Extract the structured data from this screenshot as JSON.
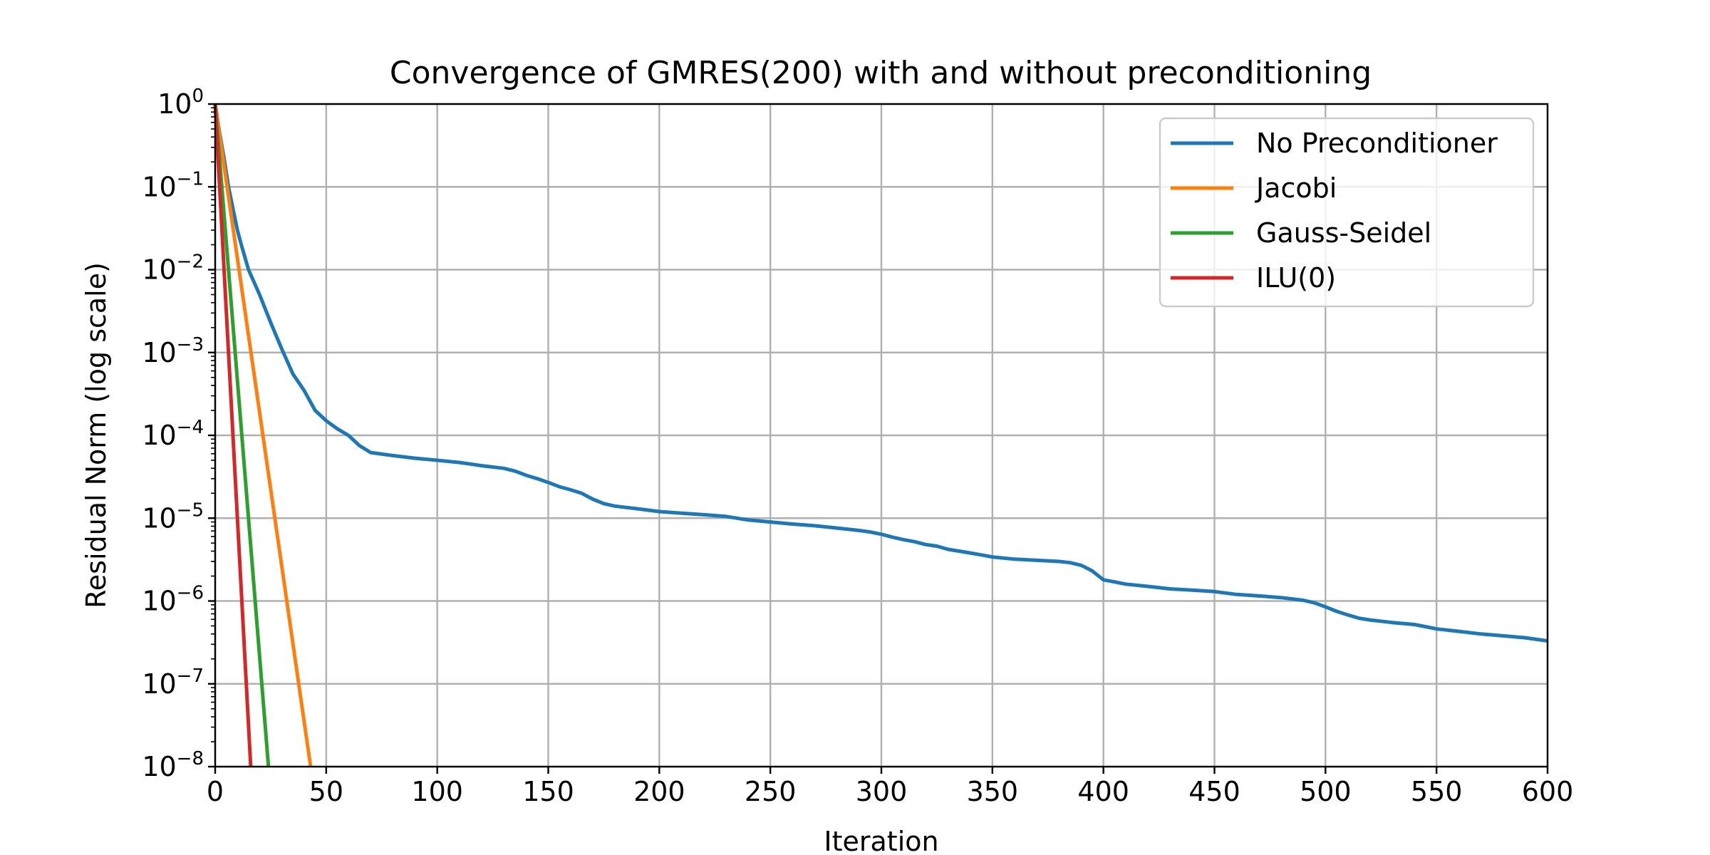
{
  "chart_data": {
    "type": "line",
    "title": "Convergence of GMRES(200) with and without preconditioning",
    "xlabel": "Iteration",
    "ylabel": "Residual Norm (log scale)",
    "xlim": [
      0,
      600
    ],
    "ylim": [
      1e-08,
      1
    ],
    "yscale": "log",
    "grid": true,
    "legend_position": "top-right",
    "x_ticks": [
      0,
      50,
      100,
      150,
      200,
      250,
      300,
      350,
      400,
      450,
      500,
      550,
      600
    ],
    "y_ticks": [
      {
        "value": 1,
        "base": "10",
        "exp": "0"
      },
      {
        "value": 0.1,
        "base": "10",
        "exp": "−1"
      },
      {
        "value": 0.01,
        "base": "10",
        "exp": "−2"
      },
      {
        "value": 0.001,
        "base": "10",
        "exp": "−3"
      },
      {
        "value": 0.0001,
        "base": "10",
        "exp": "−4"
      },
      {
        "value": 1e-05,
        "base": "10",
        "exp": "−5"
      },
      {
        "value": 1e-06,
        "base": "10",
        "exp": "−6"
      },
      {
        "value": 1e-07,
        "base": "10",
        "exp": "−7"
      },
      {
        "value": 1e-08,
        "base": "10",
        "exp": "−8"
      }
    ],
    "series": [
      {
        "name": "No Preconditioner",
        "color": "#1f77b4",
        "x": [
          0,
          2,
          4,
          6,
          8,
          10,
          12,
          15,
          20,
          25,
          30,
          35,
          40,
          45,
          50,
          55,
          60,
          65,
          70,
          80,
          90,
          100,
          110,
          115,
          120,
          130,
          135,
          140,
          145,
          150,
          155,
          160,
          165,
          170,
          175,
          180,
          190,
          200,
          210,
          220,
          230,
          235,
          240,
          250,
          260,
          270,
          280,
          290,
          295,
          300,
          305,
          310,
          315,
          320,
          325,
          330,
          335,
          340,
          345,
          350,
          355,
          360,
          370,
          380,
          385,
          390,
          395,
          400,
          405,
          410,
          420,
          430,
          440,
          450,
          460,
          470,
          480,
          490,
          495,
          500,
          505,
          510,
          515,
          520,
          530,
          540,
          545,
          550,
          560,
          570,
          580,
          590,
          600
        ],
        "y": [
          1,
          0.45,
          0.22,
          0.1,
          0.055,
          0.03,
          0.019,
          0.01,
          0.005,
          0.0023,
          0.0011,
          0.00055,
          0.00035,
          0.0002,
          0.00015,
          0.00012,
          0.0001,
          7.5e-05,
          6.2e-05,
          5.7e-05,
          5.3e-05,
          5e-05,
          4.7e-05,
          4.5e-05,
          4.3e-05,
          4e-05,
          3.7e-05,
          3.3e-05,
          3e-05,
          2.7e-05,
          2.4e-05,
          2.2e-05,
          2e-05,
          1.7e-05,
          1.5e-05,
          1.4e-05,
          1.3e-05,
          1.2e-05,
          1.15e-05,
          1.1e-05,
          1.05e-05,
          1e-05,
          9.5e-06,
          9e-06,
          8.5e-06,
          8.1e-06,
          7.6e-06,
          7.1e-06,
          6.8e-06,
          6.4e-06,
          5.9e-06,
          5.5e-06,
          5.2e-06,
          4.8e-06,
          4.6e-06,
          4.2e-06,
          4e-06,
          3.8e-06,
          3.6e-06,
          3.4e-06,
          3.3e-06,
          3.2e-06,
          3.1e-06,
          3e-06,
          2.9e-06,
          2.7e-06,
          2.3e-06,
          1.8e-06,
          1.7e-06,
          1.6e-06,
          1.5e-06,
          1.4e-06,
          1.35e-06,
          1.3e-06,
          1.2e-06,
          1.15e-06,
          1.1e-06,
          1.02e-06,
          9.5e-07,
          8.5e-07,
          7.5e-07,
          6.8e-07,
          6.2e-07,
          5.9e-07,
          5.5e-07,
          5.2e-07,
          4.9e-07,
          4.6e-07,
          4.3e-07,
          4e-07,
          3.8e-07,
          3.6e-07,
          3.3e-07
        ]
      },
      {
        "name": "Jacobi",
        "color": "#ff7f0e",
        "x": [
          0,
          43
        ],
        "y": [
          1,
          1e-08
        ]
      },
      {
        "name": "Gauss-Seidel",
        "color": "#2ca02c",
        "x": [
          0,
          24
        ],
        "y": [
          1,
          1e-08
        ]
      },
      {
        "name": "ILU(0)",
        "color": "#d62728",
        "x": [
          0,
          16
        ],
        "y": [
          1,
          1e-08
        ]
      }
    ]
  }
}
